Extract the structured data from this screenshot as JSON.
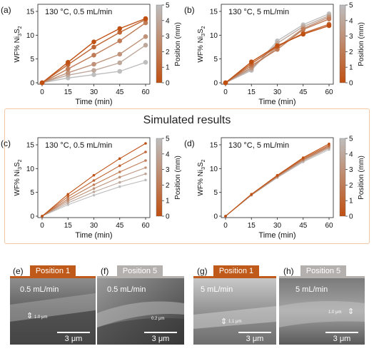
{
  "sim_title": "Simulated results",
  "colorbar": {
    "ticks": [
      "0",
      "1",
      "2",
      "3",
      "4",
      "5"
    ],
    "label": "Position (mm)"
  },
  "chart_data": [
    {
      "id": "a",
      "letter": "(a)",
      "type": "line",
      "condition": "130 °C, 0.5 mL/min",
      "xlabel": "Time (min)",
      "ylabel": "WF% Ni3S2",
      "ylabel_parts": [
        "WF% Ni",
        "3",
        "S",
        "2"
      ],
      "x": [
        0,
        15,
        30,
        45,
        60
      ],
      "xlim": [
        0,
        60
      ],
      "ylim": [
        0,
        15
      ],
      "yticks": [
        0,
        5,
        10,
        15
      ],
      "series": [
        {
          "position": 0,
          "values": [
            0,
            4.3,
            8.6,
            11.4,
            13.5
          ]
        },
        {
          "position": 1,
          "values": [
            0,
            3.8,
            7.5,
            10.6,
            13.3
          ]
        },
        {
          "position": 2,
          "values": [
            0,
            2.9,
            5.8,
            8.8,
            12.6
          ]
        },
        {
          "position": 3,
          "values": [
            0,
            2.1,
            3.9,
            6.0,
            9.7
          ]
        },
        {
          "position": 4,
          "values": [
            0,
            1.6,
            2.6,
            4.2,
            7.9
          ]
        },
        {
          "position": 5,
          "values": [
            0,
            1.0,
            1.7,
            2.4,
            4.3
          ]
        }
      ]
    },
    {
      "id": "b",
      "letter": "(b)",
      "type": "line",
      "condition": "130 °C, 5 mL/min",
      "xlabel": "Time (min)",
      "ylabel": "WF% Ni3S2",
      "ylabel_parts": [
        "WF% Ni",
        "3",
        "S",
        "2"
      ],
      "x": [
        0,
        15,
        30,
        45,
        60
      ],
      "xlim": [
        0,
        60
      ],
      "ylim": [
        0,
        15
      ],
      "yticks": [
        0,
        5,
        10,
        15
      ],
      "series": [
        {
          "position": 0,
          "values": [
            0,
            4.4,
            7.8,
            10.2,
            12.0
          ]
        },
        {
          "position": 1,
          "values": [
            0,
            4.0,
            7.6,
            10.4,
            12.3
          ]
        },
        {
          "position": 2,
          "values": [
            0,
            3.6,
            7.0,
            11.2,
            13.4
          ]
        },
        {
          "position": 3,
          "values": [
            0,
            3.2,
            7.4,
            11.4,
            13.8
          ]
        },
        {
          "position": 4,
          "values": [
            0,
            2.9,
            8.3,
            11.8,
            14.1
          ]
        },
        {
          "position": 5,
          "values": [
            0,
            2.6,
            8.8,
            12.2,
            14.5
          ]
        }
      ]
    },
    {
      "id": "c",
      "letter": "(c)",
      "type": "line",
      "condition": "130 °C, 0.5 mL/min",
      "xlabel": "Time (min)",
      "ylabel": "WF% Ni3S2",
      "ylabel_parts": [
        "WF% Ni",
        "3",
        "S",
        "2"
      ],
      "x": [
        0,
        15,
        30,
        45,
        60
      ],
      "xlim": [
        0,
        60
      ],
      "ylim": [
        0,
        15
      ],
      "yticks": [
        0,
        5,
        10,
        15
      ],
      "series": [
        {
          "position": 0,
          "values": [
            0,
            4.6,
            8.6,
            12.1,
            15.3
          ]
        },
        {
          "position": 1,
          "values": [
            0,
            4.1,
            7.5,
            10.6,
            13.5
          ]
        },
        {
          "position": 2,
          "values": [
            0,
            3.6,
            6.6,
            9.3,
            11.7
          ]
        },
        {
          "position": 3,
          "values": [
            0,
            3.2,
            5.8,
            8.2,
            10.2
          ]
        },
        {
          "position": 4,
          "values": [
            0,
            2.8,
            5.1,
            7.1,
            8.9
          ]
        },
        {
          "position": 5,
          "values": [
            0,
            2.4,
            4.4,
            6.2,
            7.6
          ]
        }
      ]
    },
    {
      "id": "d",
      "letter": "(d)",
      "type": "line",
      "condition": "130 °C, 5 mL/min",
      "xlabel": "Time (min)",
      "ylabel": "WF% Ni3S2",
      "ylabel_parts": [
        "WF% Ni",
        "3",
        "S",
        "2"
      ],
      "x": [
        0,
        15,
        30,
        45,
        60
      ],
      "xlim": [
        0,
        60
      ],
      "ylim": [
        0,
        15
      ],
      "yticks": [
        0,
        5,
        10,
        15
      ],
      "series": [
        {
          "position": 0,
          "values": [
            0,
            4.6,
            8.6,
            12.3,
            15.2
          ]
        },
        {
          "position": 1,
          "values": [
            0,
            4.6,
            8.5,
            12.1,
            14.9
          ]
        },
        {
          "position": 2,
          "values": [
            0,
            4.5,
            8.4,
            11.9,
            14.7
          ]
        },
        {
          "position": 3,
          "values": [
            0,
            4.5,
            8.3,
            11.8,
            14.5
          ]
        },
        {
          "position": 4,
          "values": [
            0,
            4.4,
            8.2,
            11.6,
            14.3
          ]
        },
        {
          "position": 5,
          "values": [
            0,
            4.4,
            8.1,
            11.4,
            14.0
          ]
        }
      ]
    }
  ],
  "sem_panels": [
    {
      "letter": "(e)",
      "tab": "Position 1",
      "tab_color": "#c05a1a",
      "flow": "0.5 mL/min",
      "thickness": "1.0 μm",
      "scale": "3 μm"
    },
    {
      "letter": "(f)",
      "tab": "Position 5",
      "tab_color": "#b4b0ad",
      "flow": "0.5 mL/min",
      "thickness": "0.2 μm",
      "scale": "3 μm"
    },
    {
      "letter": "(g)",
      "tab": "Position 1",
      "tab_color": "#c05a1a",
      "flow": "5 mL/min",
      "thickness": "1.1 μm",
      "scale": "3 μm"
    },
    {
      "letter": "(h)",
      "tab": "Position 5",
      "tab_color": "#b4b0ad",
      "flow": "5 mL/min",
      "thickness": "1.0 μm",
      "scale": "3 μm"
    }
  ]
}
